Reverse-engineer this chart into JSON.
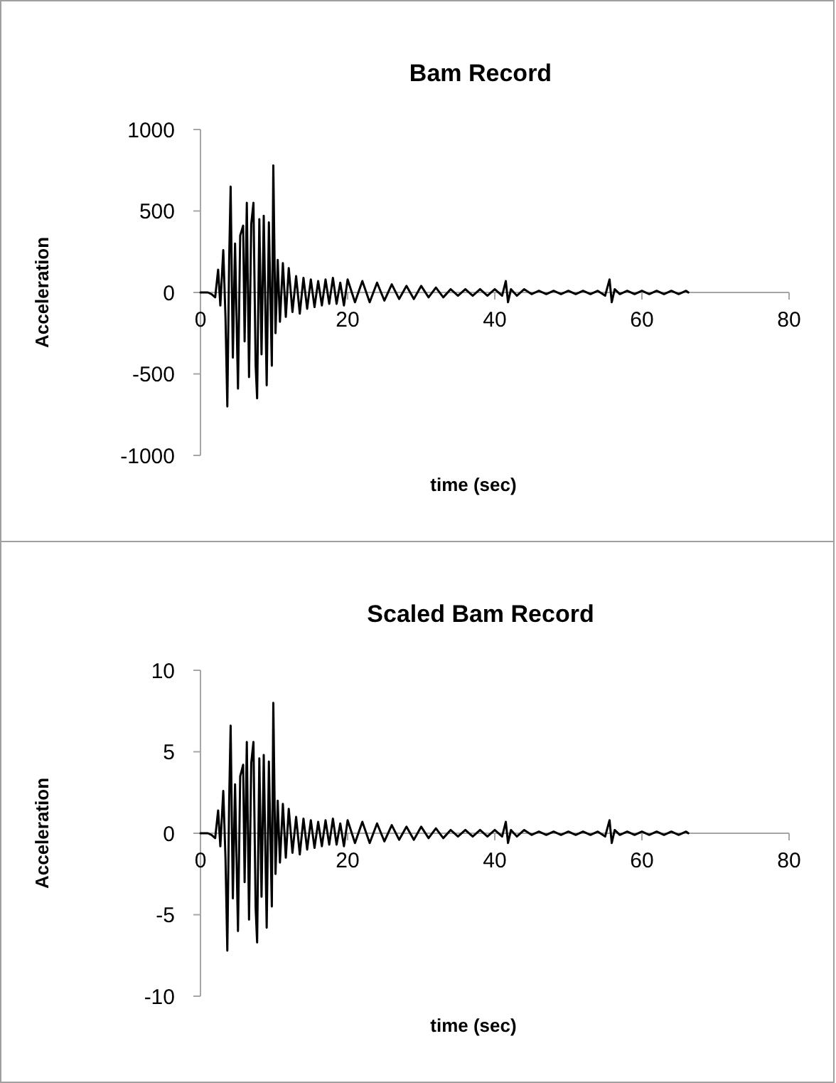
{
  "chart_data": [
    {
      "type": "line",
      "title": "Bam Record",
      "xlabel": "time (sec)",
      "ylabel": "Acceleration",
      "xlim": [
        0,
        80
      ],
      "xticks": [
        0,
        20,
        40,
        60,
        80
      ],
      "ylim": [
        -1000,
        1000
      ],
      "yticks": [
        -1000,
        -500,
        0,
        500,
        1000
      ],
      "grid": false,
      "marker": "none",
      "line_style": "solid",
      "x": [
        0,
        1,
        1.5,
        2,
        2.4,
        2.7,
        3.1,
        3.4,
        3.65,
        3.9,
        4.1,
        4.4,
        4.7,
        5.1,
        5.4,
        5.8,
        6.0,
        6.3,
        6.6,
        6.9,
        7.2,
        7.5,
        7.7,
        8.0,
        8.3,
        8.6,
        9.0,
        9.3,
        9.7,
        9.9,
        10.2,
        10.5,
        10.8,
        11.2,
        11.6,
        12,
        12.5,
        13,
        13.5,
        14,
        14.5,
        15,
        15.5,
        16,
        16.5,
        17,
        17.5,
        18,
        18.5,
        19,
        19.5,
        20,
        21,
        22,
        23,
        24,
        25,
        26,
        27,
        28,
        29,
        30,
        31,
        32,
        33,
        34,
        35,
        36,
        37,
        38,
        39,
        40,
        41,
        41.5,
        41.8,
        42.2,
        43,
        44,
        45,
        46,
        47,
        48,
        49,
        50,
        51,
        52,
        53,
        54,
        55,
        55.6,
        55.9,
        56.3,
        57,
        58,
        59,
        60,
        61,
        62,
        63,
        64,
        65,
        66,
        66.3
      ],
      "series": [
        {
          "color": "#000000",
          "values": [
            0,
            0,
            -10,
            -30,
            140,
            -80,
            260,
            -150,
            -700,
            200,
            650,
            -400,
            300,
            -590,
            350,
            410,
            -300,
            550,
            -520,
            420,
            550,
            -450,
            -650,
            450,
            -380,
            470,
            -570,
            430,
            -450,
            780,
            -250,
            200,
            -180,
            180,
            -150,
            150,
            -120,
            100,
            -130,
            90,
            -100,
            80,
            -90,
            70,
            -80,
            80,
            -70,
            90,
            -70,
            60,
            -80,
            80,
            -60,
            70,
            -60,
            60,
            -50,
            50,
            -40,
            40,
            -40,
            40,
            -30,
            30,
            -30,
            20,
            -20,
            20,
            -20,
            20,
            -20,
            20,
            -20,
            70,
            -60,
            20,
            -20,
            20,
            -10,
            10,
            -10,
            10,
            -10,
            10,
            -10,
            10,
            -10,
            10,
            -20,
            80,
            -60,
            20,
            -10,
            10,
            -10,
            10,
            -10,
            10,
            -10,
            10,
            -10,
            10,
            0
          ]
        }
      ]
    },
    {
      "type": "line",
      "title": "Scaled Bam Record",
      "xlabel": "time (sec)",
      "ylabel": "Acceleration",
      "xlim": [
        0,
        80
      ],
      "xticks": [
        0,
        20,
        40,
        60,
        80
      ],
      "ylim": [
        -10,
        10
      ],
      "yticks": [
        -10,
        -5,
        0,
        5,
        10
      ],
      "grid": false,
      "marker": "none",
      "line_style": "solid",
      "x": [
        0,
        1,
        1.5,
        2,
        2.4,
        2.7,
        3.1,
        3.4,
        3.65,
        3.9,
        4.1,
        4.4,
        4.7,
        5.1,
        5.4,
        5.8,
        6.0,
        6.3,
        6.6,
        6.9,
        7.2,
        7.5,
        7.7,
        8.0,
        8.3,
        8.6,
        9.0,
        9.3,
        9.7,
        9.9,
        10.2,
        10.5,
        10.8,
        11.2,
        11.6,
        12,
        12.5,
        13,
        13.5,
        14,
        14.5,
        15,
        15.5,
        16,
        16.5,
        17,
        17.5,
        18,
        18.5,
        19,
        19.5,
        20,
        21,
        22,
        23,
        24,
        25,
        26,
        27,
        28,
        29,
        30,
        31,
        32,
        33,
        34,
        35,
        36,
        37,
        38,
        39,
        40,
        41,
        41.5,
        41.8,
        42.2,
        43,
        44,
        45,
        46,
        47,
        48,
        49,
        50,
        51,
        52,
        53,
        54,
        55,
        55.6,
        55.9,
        56.3,
        57,
        58,
        59,
        60,
        61,
        62,
        63,
        64,
        65,
        66,
        66.3
      ],
      "series": [
        {
          "color": "#000000",
          "values": [
            0,
            0,
            -0.1,
            -0.3,
            1.4,
            -0.8,
            2.6,
            -1.5,
            -7.2,
            2,
            6.6,
            -4,
            3,
            -6,
            3.5,
            4.2,
            -3,
            5.6,
            -5.3,
            4.3,
            5.6,
            -4.6,
            -6.7,
            4.6,
            -3.9,
            4.8,
            -5.8,
            4.4,
            -4.5,
            8,
            -2.5,
            2,
            -1.8,
            1.8,
            -1.5,
            1.5,
            -1.2,
            1,
            -1.3,
            0.9,
            -1,
            0.8,
            -0.9,
            0.7,
            -0.8,
            0.8,
            -0.7,
            0.9,
            -0.7,
            0.6,
            -0.8,
            0.8,
            -0.6,
            0.7,
            -0.6,
            0.6,
            -0.5,
            0.5,
            -0.4,
            0.4,
            -0.4,
            0.4,
            -0.3,
            0.3,
            -0.3,
            0.2,
            -0.2,
            0.2,
            -0.2,
            0.2,
            -0.2,
            0.2,
            -0.2,
            0.7,
            -0.6,
            0.2,
            -0.2,
            0.2,
            -0.1,
            0.1,
            -0.1,
            0.1,
            -0.1,
            0.1,
            -0.1,
            0.1,
            -0.1,
            0.1,
            -0.2,
            0.8,
            -0.6,
            0.2,
            -0.1,
            0.1,
            -0.1,
            0.1,
            -0.1,
            0.1,
            -0.1,
            0.1,
            -0.1,
            0.1,
            0
          ]
        }
      ]
    }
  ]
}
